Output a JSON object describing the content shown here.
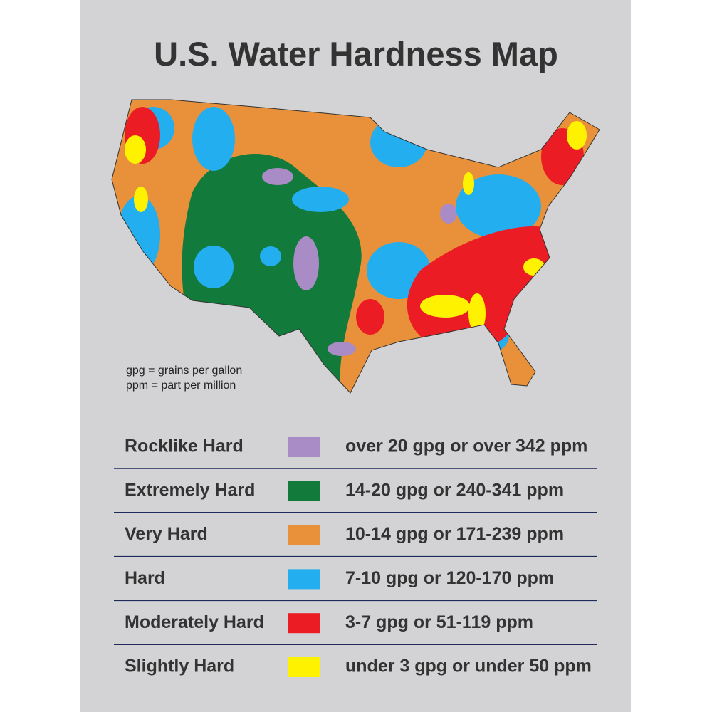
{
  "title": "U.S. Water Hardness Map",
  "notes": [
    "gpg = grains per gallon",
    "ppm = part per million"
  ],
  "legend": [
    {
      "label": "Rocklike Hard",
      "color": "#a98bc5",
      "range": "over 20 gpg or over 342 ppm"
    },
    {
      "label": "Extremely Hard",
      "color": "#127a3a",
      "range": "14-20 gpg or 240-341 ppm"
    },
    {
      "label": "Very Hard",
      "color": "#e9913a",
      "range": "10-14 gpg or 171-239 ppm"
    },
    {
      "label": "Hard",
      "color": "#22aeef",
      "range": "7-10 gpg or 120-170 ppm"
    },
    {
      "label": "Moderately Hard",
      "color": "#ec1c24",
      "range": "3-7 gpg or 51-119 ppm"
    },
    {
      "label": "Slightly Hard",
      "color": "#fff200",
      "range": "under 3 gpg or under 50 ppm"
    }
  ]
}
